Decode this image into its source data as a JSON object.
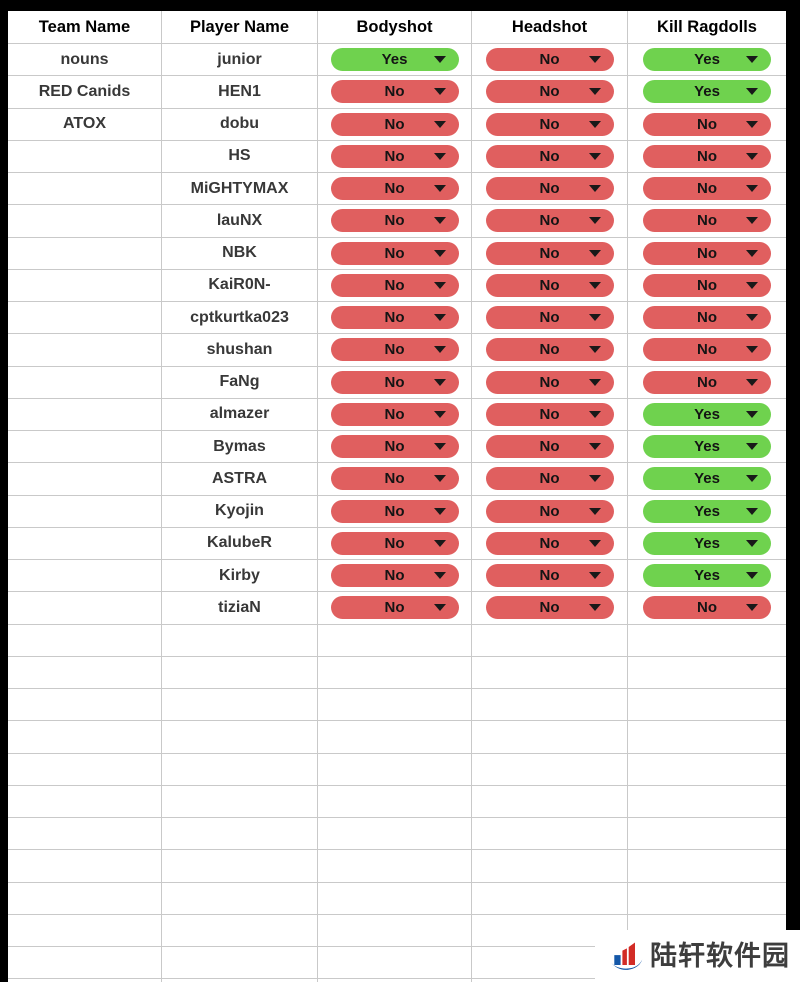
{
  "colors": {
    "yes_bg": "#6fd24e",
    "no_bg": "#e05f5f",
    "grid": "#c9c9c9",
    "header_text": "#000000",
    "cell_text": "#383838",
    "frame": "#000000",
    "logo_red": "#d22c26",
    "logo_blue": "#1457a8"
  },
  "table": {
    "headers": [
      "Team Name",
      "Player Name",
      "Bodyshot",
      "Headshot",
      "Kill Ragdolls"
    ],
    "rows": [
      {
        "team": "nouns",
        "player": "junior",
        "bodyshot": "Yes",
        "headshot": "No",
        "kill_ragdolls": "Yes"
      },
      {
        "team": "RED Canids",
        "player": "HEN1",
        "bodyshot": "No",
        "headshot": "No",
        "kill_ragdolls": "Yes"
      },
      {
        "team": "ATOX",
        "player": "dobu",
        "bodyshot": "No",
        "headshot": "No",
        "kill_ragdolls": "No"
      },
      {
        "team": "",
        "player": "HS",
        "bodyshot": "No",
        "headshot": "No",
        "kill_ragdolls": "No"
      },
      {
        "team": "",
        "player": "MiGHTYMAX",
        "bodyshot": "No",
        "headshot": "No",
        "kill_ragdolls": "No"
      },
      {
        "team": "",
        "player": "lauNX",
        "bodyshot": "No",
        "headshot": "No",
        "kill_ragdolls": "No"
      },
      {
        "team": "",
        "player": "NBK",
        "bodyshot": "No",
        "headshot": "No",
        "kill_ragdolls": "No"
      },
      {
        "team": "",
        "player": "KaiR0N-",
        "bodyshot": "No",
        "headshot": "No",
        "kill_ragdolls": "No"
      },
      {
        "team": "",
        "player": "cptkurtka023",
        "bodyshot": "No",
        "headshot": "No",
        "kill_ragdolls": "No"
      },
      {
        "team": "",
        "player": "shushan",
        "bodyshot": "No",
        "headshot": "No",
        "kill_ragdolls": "No"
      },
      {
        "team": "",
        "player": "FaNg",
        "bodyshot": "No",
        "headshot": "No",
        "kill_ragdolls": "No"
      },
      {
        "team": "",
        "player": "almazer",
        "bodyshot": "No",
        "headshot": "No",
        "kill_ragdolls": "Yes"
      },
      {
        "team": "",
        "player": "Bymas",
        "bodyshot": "No",
        "headshot": "No",
        "kill_ragdolls": "Yes"
      },
      {
        "team": "",
        "player": "ASTRA",
        "bodyshot": "No",
        "headshot": "No",
        "kill_ragdolls": "Yes"
      },
      {
        "team": "",
        "player": "Kyojin",
        "bodyshot": "No",
        "headshot": "No",
        "kill_ragdolls": "Yes"
      },
      {
        "team": "",
        "player": "KalubeR",
        "bodyshot": "No",
        "headshot": "No",
        "kill_ragdolls": "Yes"
      },
      {
        "team": "",
        "player": "Kirby",
        "bodyshot": "No",
        "headshot": "No",
        "kill_ragdolls": "Yes"
      },
      {
        "team": "",
        "player": "tiziaN",
        "bodyshot": "No",
        "headshot": "No",
        "kill_ragdolls": "No"
      }
    ],
    "empty_row_count": 12
  },
  "watermark": {
    "text": "陆轩软件园"
  }
}
